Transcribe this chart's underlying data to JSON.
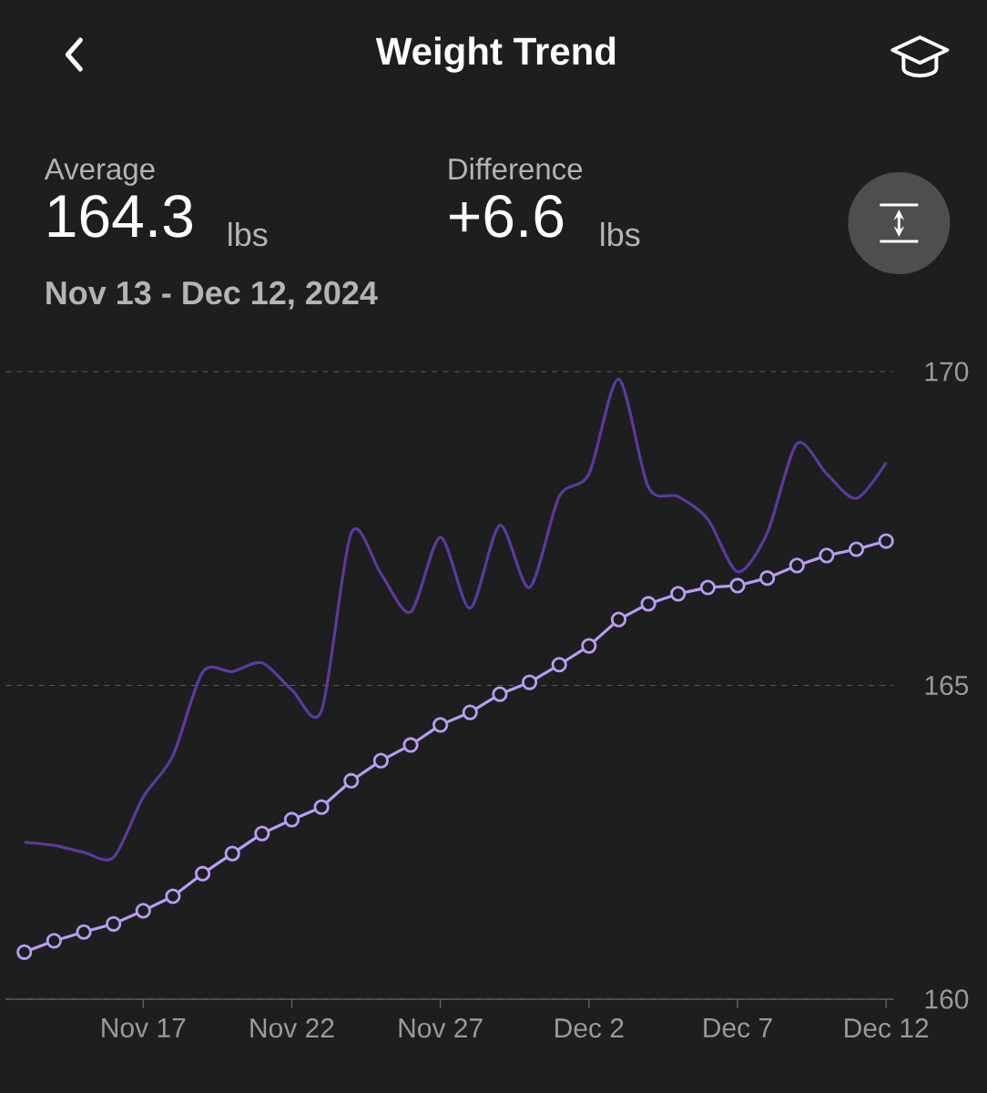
{
  "chart_data": {
    "type": "line",
    "title": "Weight Trend",
    "annotations": [
      "Average",
      "164.3",
      "lbs",
      "Difference",
      "+6.6",
      "lbs",
      "Nov 13 - Dec 12, 2024"
    ],
    "x": [
      "2024-11-13",
      "2024-11-14",
      "2024-11-15",
      "2024-11-16",
      "2024-11-17",
      "2024-11-18",
      "2024-11-19",
      "2024-11-20",
      "2024-11-21",
      "2024-11-22",
      "2024-11-23",
      "2024-11-24",
      "2024-11-25",
      "2024-11-26",
      "2024-11-27",
      "2024-11-28",
      "2024-11-29",
      "2024-11-30",
      "2024-12-01",
      "2024-12-02",
      "2024-12-03",
      "2024-12-04",
      "2024-12-05",
      "2024-12-06",
      "2024-12-07",
      "2024-12-08",
      "2024-12-09",
      "2024-12-10",
      "2024-12-11",
      "2024-12-12"
    ],
    "series": [
      {
        "color": "#5b3a9f",
        "marker": "none",
        "values": [
          162.5,
          162.45,
          162.34,
          162.26,
          163.22,
          163.88,
          165.21,
          165.22,
          165.36,
          164.93,
          164.6,
          167.43,
          166.78,
          166.17,
          167.36,
          166.23,
          167.55,
          166.56,
          168.01,
          168.37,
          169.88,
          168.16,
          168.01,
          167.65,
          166.81,
          167.43,
          168.85,
          168.37,
          167.98,
          168.55
        ]
      },
      {
        "color": "#b89cf5",
        "marker": "circle",
        "values": [
          160.75,
          160.93,
          161.07,
          161.2,
          161.41,
          161.64,
          162.0,
          162.32,
          162.64,
          162.86,
          163.06,
          163.48,
          163.8,
          164.05,
          164.37,
          164.57,
          164.86,
          165.05,
          165.33,
          165.63,
          166.05,
          166.3,
          166.46,
          166.56,
          166.59,
          166.71,
          166.91,
          167.07,
          167.17,
          167.3
        ]
      }
    ],
    "xlim": [
      "2024-11-12T09:00",
      "2024-12-12T06:00"
    ],
    "xticks": [
      {
        "value": "2024-11-17",
        "label": "Nov 17"
      },
      {
        "value": "2024-11-22",
        "label": "Nov 22"
      },
      {
        "value": "2024-11-27",
        "label": "Nov 27"
      },
      {
        "value": "2024-12-02",
        "label": "Dec 2"
      },
      {
        "value": "2024-12-07",
        "label": "Dec 7"
      },
      {
        "value": "2024-12-12",
        "label": "Dec 12"
      }
    ],
    "ylim": [
      160,
      170
    ],
    "yticks": [
      160,
      165,
      170
    ],
    "grid": "y"
  }
}
